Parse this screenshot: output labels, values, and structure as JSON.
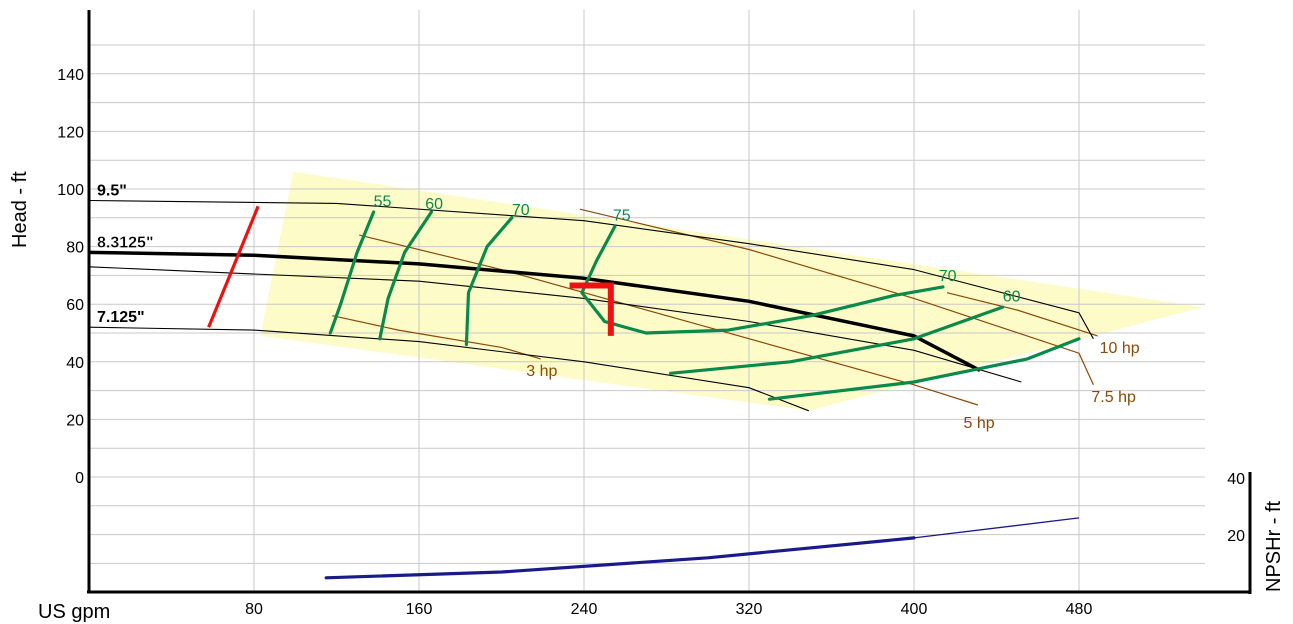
{
  "chart_data": {
    "type": "line",
    "xlabel": "US gpm",
    "ylabel": "Head - ft",
    "y2label": "NPSHr - ft",
    "xlim": [
      0,
      540
    ],
    "ylim": [
      -40,
      160
    ],
    "x_ticks": [
      80,
      160,
      240,
      320,
      400,
      480
    ],
    "y_ticks": [
      0,
      20,
      40,
      60,
      80,
      100,
      120,
      140
    ],
    "y2_ticks": [
      20,
      40
    ],
    "grid": true,
    "colors": {
      "impeller": "#000000",
      "efficiency": "#0a8a4a",
      "power": "#8a4a0a",
      "npsh": "#1a1a8a",
      "marker": "#ee1111",
      "region": "#fdfcc8"
    },
    "operating_region": [
      [
        99,
        106
      ],
      [
        540,
        59
      ],
      [
        349,
        23
      ],
      [
        83,
        49
      ]
    ],
    "impeller_curves": [
      {
        "label": "9.5\"",
        "points": [
          [
            0,
            96
          ],
          [
            120,
            95
          ],
          [
            240,
            89
          ],
          [
            320,
            81
          ],
          [
            400,
            72
          ],
          [
            480,
            57
          ],
          [
            487,
            48
          ]
        ]
      },
      {
        "label": "8.3125\"",
        "points": [
          [
            0,
            78
          ],
          [
            80,
            77
          ],
          [
            160,
            74
          ],
          [
            240,
            69
          ],
          [
            320,
            61
          ],
          [
            400,
            49
          ],
          [
            432,
            37
          ]
        ]
      },
      {
        "label": "",
        "points": [
          [
            0,
            73
          ],
          [
            160,
            68
          ],
          [
            240,
            62
          ],
          [
            320,
            54
          ],
          [
            400,
            44
          ],
          [
            452,
            33
          ]
        ]
      },
      {
        "label": "7.125\"",
        "points": [
          [
            0,
            52
          ],
          [
            80,
            51
          ],
          [
            160,
            47
          ],
          [
            240,
            40
          ],
          [
            320,
            31
          ],
          [
            349,
            23
          ]
        ]
      }
    ],
    "efficiency_curves": [
      {
        "label": "55",
        "points": [
          [
            138,
            92
          ],
          [
            130,
            78
          ],
          [
            122,
            60
          ],
          [
            117,
            50
          ]
        ]
      },
      {
        "label": "60",
        "points": [
          [
            166,
            92
          ],
          [
            153,
            78
          ],
          [
            145,
            62
          ],
          [
            141,
            48
          ]
        ]
      },
      {
        "label": "70",
        "points": [
          [
            205,
            90
          ],
          [
            193,
            80
          ],
          [
            184,
            64
          ],
          [
            183,
            46
          ]
        ]
      },
      {
        "label": "75",
        "points": [
          [
            255,
            87
          ],
          [
            246,
            75
          ],
          [
            239,
            64
          ],
          [
            250,
            54
          ],
          [
            270,
            50
          ],
          [
            310,
            51
          ],
          [
            350,
            56
          ],
          [
            390,
            63
          ],
          [
            414,
            66
          ]
        ]
      },
      {
        "label": "70",
        "points": [
          [
            282,
            36
          ],
          [
            340,
            40
          ],
          [
            400,
            48
          ],
          [
            443,
            59
          ]
        ]
      },
      {
        "label": "60",
        "points": [
          [
            330,
            27
          ],
          [
            400,
            33
          ],
          [
            455,
            41
          ],
          [
            480,
            48
          ]
        ]
      }
    ],
    "efficiency_label_positions": [
      [
        138,
        94
      ],
      [
        163,
        93
      ],
      [
        205,
        91
      ],
      [
        254,
        89
      ],
      [
        412,
        68
      ],
      [
        443,
        61
      ],
      [
        483,
        49
      ]
    ],
    "power_curves": [
      {
        "label": "3 hp",
        "points": [
          [
            118,
            56
          ],
          [
            150,
            51
          ],
          [
            200,
            45
          ],
          [
            219,
            41
          ]
        ]
      },
      {
        "label": "5 hp",
        "points": [
          [
            131,
            84
          ],
          [
            200,
            72
          ],
          [
            300,
            52
          ],
          [
            400,
            32
          ],
          [
            431,
            25
          ]
        ]
      },
      {
        "label": "7.5 hp",
        "points": [
          [
            238,
            93
          ],
          [
            320,
            79
          ],
          [
            400,
            62
          ],
          [
            480,
            43
          ],
          [
            487,
            32
          ]
        ]
      },
      {
        "label": "10 hp",
        "points": [
          [
            416,
            64
          ],
          [
            450,
            58
          ],
          [
            489,
            49
          ]
        ]
      }
    ],
    "power_label_positions": [
      [
        212,
        35
      ],
      [
        424,
        17
      ],
      [
        486,
        26
      ],
      [
        490,
        43
      ]
    ],
    "npsh_curve": {
      "points": [
        [
          115,
          5
        ],
        [
          200,
          7
        ],
        [
          300,
          12
        ],
        [
          400,
          19
        ],
        [
          480,
          26
        ]
      ],
      "y2lim": [
        0,
        50
      ]
    },
    "operating_point": {
      "flow": 253,
      "head": 66.5,
      "flow_min": 233,
      "head_min": 49
    },
    "min_flow_line": [
      [
        58,
        52
      ],
      [
        82,
        94
      ]
    ]
  }
}
